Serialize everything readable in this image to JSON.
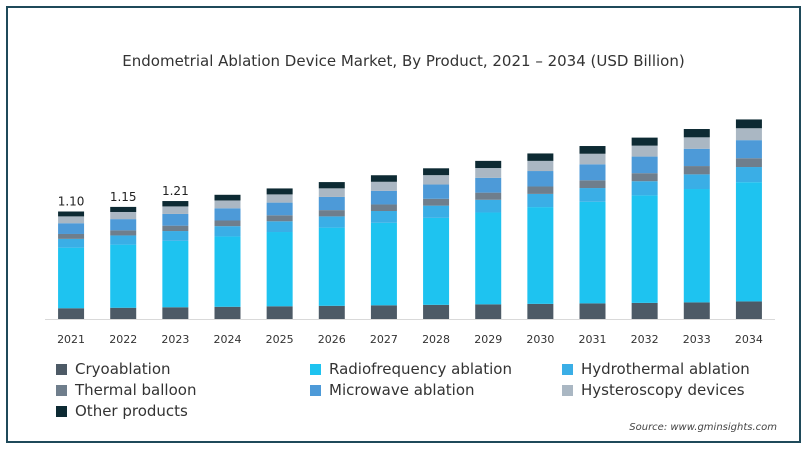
{
  "chart_data": {
    "type": "bar",
    "stacked": true,
    "title": "Endometrial Ablation Device Market, By Product, 2021 – 2034 (USD Billion)",
    "xlabel": "",
    "ylabel": "",
    "categories": [
      "2021",
      "2022",
      "2023",
      "2024",
      "2025",
      "2026",
      "2027",
      "2028",
      "2029",
      "2030",
      "2031",
      "2032",
      "2033",
      "2034"
    ],
    "data_labels": [
      "1.10",
      "1.15",
      "1.21",
      "",
      "",
      "",
      "",
      "",
      "",
      "",
      "",
      "",
      "",
      ""
    ],
    "ylim": [
      0,
      2.2
    ],
    "grid": false,
    "legend_position": "bottom",
    "series": [
      {
        "name": "Cryoablation",
        "color": "#4d5a66",
        "values": [
          0.11,
          0.115,
          0.12,
          0.125,
          0.13,
          0.135,
          0.14,
          0.145,
          0.15,
          0.155,
          0.16,
          0.165,
          0.17,
          0.18
        ]
      },
      {
        "name": "Radiofrequency ablation",
        "color": "#1ec3f0",
        "values": [
          0.62,
          0.646,
          0.68,
          0.72,
          0.76,
          0.8,
          0.845,
          0.89,
          0.94,
          0.99,
          1.04,
          1.1,
          1.16,
          1.22
        ]
      },
      {
        "name": "Hydrothermal ablation",
        "color": "#3aaee6",
        "values": [
          0.09,
          0.094,
          0.1,
          0.105,
          0.11,
          0.115,
          0.12,
          0.125,
          0.13,
          0.135,
          0.14,
          0.145,
          0.15,
          0.155
        ]
      },
      {
        "name": "Thermal balloon",
        "color": "#6f7e8c",
        "values": [
          0.05,
          0.052,
          0.055,
          0.058,
          0.061,
          0.064,
          0.067,
          0.07,
          0.073,
          0.076,
          0.079,
          0.082,
          0.085,
          0.09
        ]
      },
      {
        "name": "Microwave ablation",
        "color": "#4d9ad8",
        "values": [
          0.11,
          0.115,
          0.12,
          0.125,
          0.13,
          0.135,
          0.14,
          0.146,
          0.152,
          0.158,
          0.164,
          0.17,
          0.177,
          0.185
        ]
      },
      {
        "name": "Hysteroscopy devices",
        "color": "#aab7c3",
        "values": [
          0.07,
          0.073,
          0.077,
          0.08,
          0.084,
          0.088,
          0.092,
          0.096,
          0.1,
          0.104,
          0.108,
          0.112,
          0.117,
          0.122
        ]
      },
      {
        "name": "Other products",
        "color": "#0d2a33",
        "values": [
          0.05,
          0.052,
          0.055,
          0.058,
          0.061,
          0.064,
          0.067,
          0.07,
          0.073,
          0.076,
          0.079,
          0.082,
          0.085,
          0.09
        ]
      }
    ],
    "source": "Source: www.gminsights.com"
  }
}
